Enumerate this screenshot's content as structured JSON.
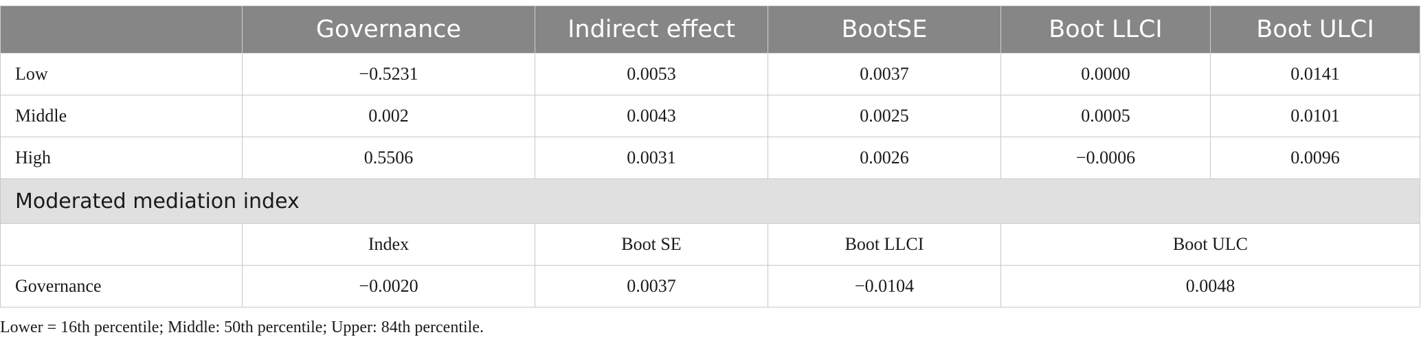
{
  "header": {
    "blank": "",
    "cols": [
      "Governance",
      "Indirect effect",
      "BootSE",
      "Boot LLCI",
      "Boot ULCI"
    ]
  },
  "rows": [
    {
      "label": "Low",
      "values": [
        "−0.5231",
        "0.0053",
        "0.0037",
        "0.0000",
        "0.0141"
      ]
    },
    {
      "label": "Middle",
      "values": [
        "0.002",
        "0.0043",
        "0.0025",
        "0.0005",
        "0.0101"
      ]
    },
    {
      "label": "High",
      "values": [
        "0.5506",
        "0.0031",
        "0.0026",
        "−0.0006",
        "0.0096"
      ]
    }
  ],
  "section": {
    "title": "Moderated mediation index",
    "subheader": [
      "Index",
      "Boot SE",
      "Boot LLCI",
      "Boot ULC"
    ],
    "row": {
      "label": "Governance",
      "values": [
        "−0.0020",
        "0.0037",
        "−0.0104",
        "0.0048"
      ]
    }
  },
  "footnote": "Lower = 16th percentile; Middle: 50th percentile; Upper: 84th percentile."
}
